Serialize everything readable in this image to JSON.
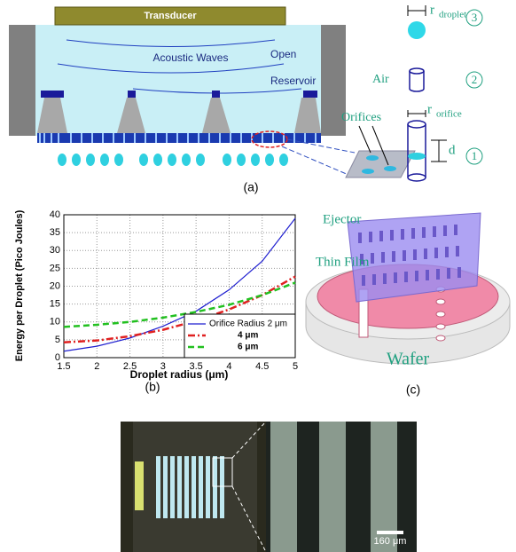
{
  "panel_a": {
    "transducer": "Transducer",
    "waves": "Acoustic Waves",
    "open": "Open",
    "reservoir": "Reservoir",
    "r_droplet": "r",
    "r_droplet_sub": "droplet",
    "air": "Air",
    "orifices": "Orifices",
    "r_orifice": "r",
    "r_orifice_sub": "orifice",
    "d": "d",
    "steps": [
      "3",
      "2",
      "1"
    ],
    "caption": "(a)"
  },
  "chart_data": {
    "type": "line",
    "xlabel": "Droplet radius (μm)",
    "ylabel": "Energy per Droplet (Pico Joules)",
    "caption": "(b)",
    "x": [
      1.5,
      2,
      2.5,
      3,
      3.5,
      4,
      4.5,
      5
    ],
    "series": [
      {
        "name": "Orifice Radius 2 μm",
        "color": "#1f1fd0",
        "values": [
          1.8,
          3.2,
          5.5,
          8.8,
          13,
          19,
          27,
          39
        ]
      },
      {
        "name": "4 μm",
        "color": "#e02020",
        "values": [
          4.3,
          4.8,
          6,
          7.8,
          10.3,
          13.5,
          17.5,
          22.7
        ]
      },
      {
        "name": "6 μm",
        "color": "#22c020",
        "values": [
          8.6,
          9.2,
          10,
          11.2,
          12.8,
          14.8,
          17.5,
          21
        ]
      }
    ],
    "xlim": [
      1.5,
      5
    ],
    "ylim": [
      0,
      40
    ],
    "xticks": [
      1.5,
      2,
      2.5,
      3,
      3.5,
      4,
      4.5,
      5
    ],
    "yticks": [
      0,
      5,
      10,
      15,
      20,
      25,
      30,
      35,
      40
    ],
    "grid": true,
    "legend": "lower right"
  },
  "panel_c": {
    "ejector": "Ejector",
    "thin_film": "Thin Film",
    "wafer": "Wafer",
    "caption": "(c)"
  },
  "panel_d": {
    "scale": "160 μm"
  }
}
